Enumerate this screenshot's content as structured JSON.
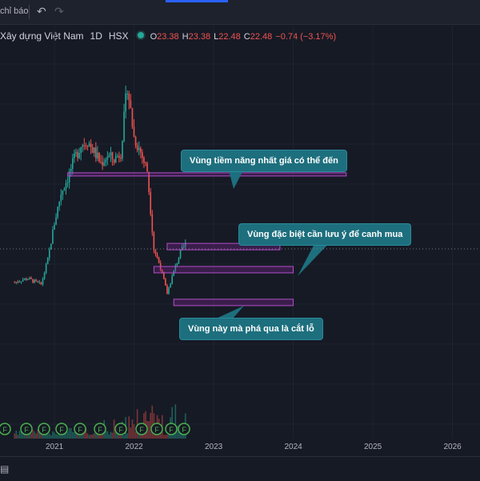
{
  "toolbar": {
    "indicators_label": "chỉ báo",
    "undo_icon": "undo-icon",
    "redo_icon": "redo-icon"
  },
  "legend": {
    "symbol": "Xây dựng Việt Nam",
    "timeframe": "1D",
    "exchange": "HSX",
    "open_label": "O",
    "open": "23.38",
    "high_label": "H",
    "high": "23.38",
    "low_label": "L",
    "low": "22.48",
    "close_label": "C",
    "close": "22.48",
    "change": "−0.74 (−3.17%)"
  },
  "annotations": {
    "potential": "Vùng tiềm năng nhất giá có thể đến",
    "watch": "Vùng đặc biệt cần lưu ý để canh mua",
    "stoploss": "Vùng này mà phá qua là cắt lỗ"
  },
  "colors": {
    "up": "#26a69a",
    "down": "#ef5350",
    "zone": "#9c27b0",
    "callout": "#1d6f7e",
    "background": "#161a25"
  },
  "chart_data": {
    "type": "candlestick",
    "x_ticks": [
      "2021",
      "2022",
      "2023",
      "2024",
      "2025",
      "2026"
    ],
    "series": [
      {
        "values": [
          {
            "x": "2020-07",
            "close": 7.5
          },
          {
            "x": "2020-08",
            "close": 7.8
          },
          {
            "x": "2020-09",
            "close": 8.0
          },
          {
            "x": "2020-10",
            "close": 7.6
          },
          {
            "x": "2020-11",
            "close": 7.2
          },
          {
            "x": "2020-12",
            "close": 10.5
          },
          {
            "x": "2021-01",
            "close": 15.5
          },
          {
            "x": "2021-02",
            "close": 19.5
          },
          {
            "x": "2021-03",
            "close": 21.5
          },
          {
            "x": "2021-04",
            "close": 24.0
          },
          {
            "x": "2021-05",
            "close": 26.0
          },
          {
            "x": "2021-06",
            "close": 26.5
          },
          {
            "x": "2021-07",
            "close": 25.0
          },
          {
            "x": "2021-08",
            "close": 23.5
          },
          {
            "x": "2021-09",
            "close": 24.5
          },
          {
            "x": "2021-10",
            "close": 24.0
          },
          {
            "x": "2021-11",
            "close": 25.0
          },
          {
            "x": "2021-12",
            "close": 34.0
          },
          {
            "x": "2022-01",
            "close": 27.0
          },
          {
            "x": "2022-02",
            "close": 25.0
          },
          {
            "x": "2022-03",
            "close": 22.5
          },
          {
            "x": "2022-04",
            "close": 12.0
          },
          {
            "x": "2022-05",
            "close": 9.5
          },
          {
            "x": "2022-06",
            "close": 6.0
          },
          {
            "x": "2022-07",
            "close": 9.0
          },
          {
            "x": "2022-08",
            "close": 11.5
          },
          {
            "x": "2022-09",
            "close": 13.0
          }
        ]
      }
    ],
    "zones": [
      {
        "name": "potential",
        "price": 22.0,
        "from": "2021-03",
        "to": "2024-09"
      },
      {
        "name": "watch-upper",
        "price": 12.3,
        "from": "2022-06",
        "to": "2023-11"
      },
      {
        "name": "watch-lower",
        "price": 9.2,
        "from": "2022-04",
        "to": "2024-01"
      },
      {
        "name": "stoploss",
        "price": 4.8,
        "from": "2022-07",
        "to": "2024-01"
      }
    ],
    "event_marker": "F",
    "grid": true,
    "price_range": [
      0,
      40
    ]
  }
}
